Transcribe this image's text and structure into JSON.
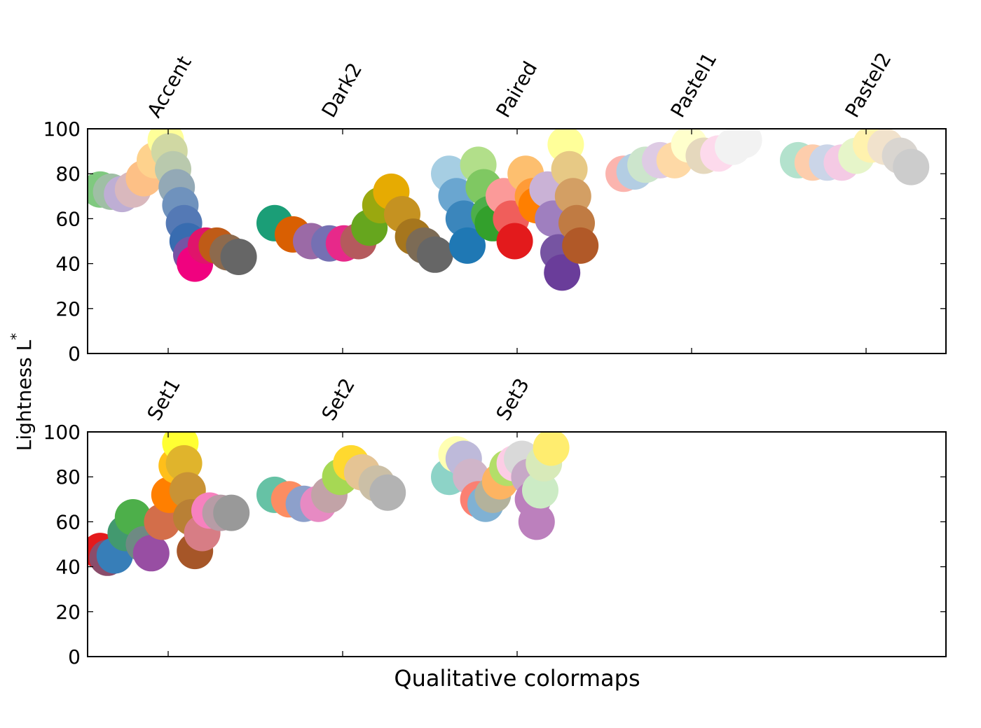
{
  "chart_data": {
    "type": "scatter",
    "ylabel": "Lightness L*",
    "ylabel_main": "Lightness L",
    "ylabel_sup": "*",
    "xlabel": "Qualitative colormaps",
    "ylim": [
      0,
      100
    ],
    "yticks": [
      "0",
      "20",
      "40",
      "60",
      "80",
      "100"
    ],
    "panels": [
      {
        "colormaps": [
          {
            "name": "Accent",
            "points": [
              [
                0.0,
                73,
                "#7fc97f"
              ],
              [
                0.06,
                72,
                "#9fbfa5"
              ],
              [
                0.12,
                71,
                "#beaed4"
              ],
              [
                0.18,
                73,
                "#d9b8bd"
              ],
              [
                0.24,
                78,
                "#fdc086"
              ],
              [
                0.3,
                86,
                "#fed28d"
              ],
              [
                0.36,
                95,
                "#ffff99"
              ],
              [
                0.38,
                90,
                "#d0d8a3"
              ],
              [
                0.4,
                82,
                "#b9c9ad"
              ],
              [
                0.42,
                74,
                "#93a9b6"
              ],
              [
                0.44,
                66,
                "#6f92bd"
              ],
              [
                0.46,
                58,
                "#5479b5"
              ],
              [
                0.48,
                50,
                "#386cb0"
              ],
              [
                0.5,
                44,
                "#7554a4"
              ],
              [
                0.52,
                40,
                "#f0027f"
              ],
              [
                0.58,
                48,
                "#e0146b"
              ],
              [
                0.64,
                48,
                "#bf5b17"
              ],
              [
                0.7,
                45,
                "#8d6a4d"
              ],
              [
                0.76,
                43,
                "#666666"
              ]
            ]
          },
          {
            "name": "Dark2",
            "points": [
              [
                0.0,
                58,
                "#1b9e77"
              ],
              [
                0.1,
                53,
                "#d95f02"
              ],
              [
                0.2,
                50,
                "#9b6aa6"
              ],
              [
                0.3,
                49,
                "#7570b3"
              ],
              [
                0.38,
                49,
                "#e7298a"
              ],
              [
                0.46,
                50,
                "#b55a5d"
              ],
              [
                0.52,
                56,
                "#66a61e"
              ],
              [
                0.58,
                66,
                "#9aa80f"
              ],
              [
                0.64,
                72,
                "#e6ab02"
              ],
              [
                0.7,
                62,
                "#c59221"
              ],
              [
                0.76,
                52,
                "#a6761d"
              ],
              [
                0.82,
                48,
                "#7c6b55"
              ],
              [
                0.88,
                44,
                "#666666"
              ]
            ]
          },
          {
            "name": "Paired",
            "points": [
              [
                0.0,
                80,
                "#a6cee3"
              ],
              [
                0.04,
                70,
                "#6aa6d0"
              ],
              [
                0.08,
                60,
                "#3b86bc"
              ],
              [
                0.1,
                48,
                "#1f78b4"
              ],
              [
                0.16,
                84,
                "#b2df8a"
              ],
              [
                0.19,
                74,
                "#7fc862"
              ],
              [
                0.22,
                62,
                "#4daf4a"
              ],
              [
                0.24,
                58,
                "#33a02c"
              ],
              [
                0.3,
                70,
                "#fb9a99"
              ],
              [
                0.34,
                60,
                "#f05e5b"
              ],
              [
                0.36,
                50,
                "#e31a1c"
              ],
              [
                0.42,
                80,
                "#fdbf6f"
              ],
              [
                0.46,
                70,
                "#ff9b37"
              ],
              [
                0.48,
                66,
                "#ff7f00"
              ],
              [
                0.54,
                73,
                "#cab2d6"
              ],
              [
                0.57,
                60,
                "#9f7fbf"
              ],
              [
                0.6,
                45,
                "#7654a2"
              ],
              [
                0.62,
                36,
                "#6a3d9a"
              ],
              [
                0.64,
                93,
                "#ffff99"
              ],
              [
                0.66,
                82,
                "#e7c985"
              ],
              [
                0.68,
                70,
                "#d39f64"
              ],
              [
                0.7,
                58,
                "#c07b43"
              ],
              [
                0.72,
                48,
                "#b15928"
              ]
            ]
          },
          {
            "name": "Pastel1",
            "points": [
              [
                0.0,
                80,
                "#fbb4ae"
              ],
              [
                0.06,
                81,
                "#b3cde3"
              ],
              [
                0.12,
                84,
                "#cce5cc"
              ],
              [
                0.2,
                86,
                "#decbe4"
              ],
              [
                0.28,
                86,
                "#fed9a6"
              ],
              [
                0.36,
                93,
                "#ffffcc"
              ],
              [
                0.44,
                88,
                "#e5d8bd"
              ],
              [
                0.52,
                89,
                "#fddaec"
              ],
              [
                0.6,
                92,
                "#f2f2f2"
              ],
              [
                0.66,
                95,
                "#f2f2f2"
              ]
            ]
          },
          {
            "name": "Pastel2",
            "points": [
              [
                0.0,
                86,
                "#b3e2cd"
              ],
              [
                0.08,
                85,
                "#fdcdac"
              ],
              [
                0.16,
                85,
                "#cbd5e8"
              ],
              [
                0.24,
                85,
                "#f4cae4"
              ],
              [
                0.32,
                88,
                "#e6f5c9"
              ],
              [
                0.4,
                93,
                "#fff2ae"
              ],
              [
                0.48,
                92,
                "#f1e2cc"
              ],
              [
                0.56,
                88,
                "#d9d5d0"
              ],
              [
                0.62,
                83,
                "#cccccc"
              ]
            ]
          }
        ]
      },
      {
        "colormaps": [
          {
            "name": "Set1",
            "points": [
              [
                0.0,
                47,
                "#e41a1c"
              ],
              [
                0.04,
                44,
                "#8a4c6b"
              ],
              [
                0.08,
                45,
                "#377eb8"
              ],
              [
                0.14,
                55,
                "#42996f"
              ],
              [
                0.18,
                62,
                "#4daf4a"
              ],
              [
                0.24,
                50,
                "#6e8a83"
              ],
              [
                0.28,
                46,
                "#984ea3"
              ],
              [
                0.34,
                60,
                "#d36e4a"
              ],
              [
                0.38,
                72,
                "#ff7f00"
              ],
              [
                0.42,
                85,
                "#ffbf1a"
              ],
              [
                0.44,
                95,
                "#ffff33"
              ],
              [
                0.46,
                86,
                "#e0b42c"
              ],
              [
                0.48,
                74,
                "#c99335"
              ],
              [
                0.5,
                62,
                "#b98035"
              ],
              [
                0.52,
                47,
                "#a65628"
              ],
              [
                0.56,
                55,
                "#d77d85"
              ],
              [
                0.6,
                65,
                "#f781bf"
              ],
              [
                0.66,
                64,
                "#b79ca6"
              ],
              [
                0.72,
                64,
                "#999999"
              ]
            ]
          },
          {
            "name": "Set2",
            "points": [
              [
                0.0,
                72,
                "#66c2a5"
              ],
              [
                0.08,
                70,
                "#fc8d62"
              ],
              [
                0.16,
                68,
                "#8da0cb"
              ],
              [
                0.24,
                68,
                "#e78ac3"
              ],
              [
                0.3,
                72,
                "#c2a3a7"
              ],
              [
                0.36,
                80,
                "#a6d854"
              ],
              [
                0.42,
                86,
                "#ffd92f"
              ],
              [
                0.48,
                82,
                "#e5c494"
              ],
              [
                0.56,
                77,
                "#cbbfa6"
              ],
              [
                0.62,
                73,
                "#b3b3b3"
              ]
            ]
          },
          {
            "name": "Set3",
            "points": [
              [
                0.0,
                80,
                "#8dd3c7"
              ],
              [
                0.04,
                90,
                "#ffffb3"
              ],
              [
                0.08,
                88,
                "#bebada"
              ],
              [
                0.12,
                80,
                "#d0b5c9"
              ],
              [
                0.16,
                70,
                "#fb8072"
              ],
              [
                0.2,
                68,
                "#80b1d3"
              ],
              [
                0.24,
                72,
                "#b3b29c"
              ],
              [
                0.28,
                78,
                "#fdb462"
              ],
              [
                0.32,
                84,
                "#b3de69"
              ],
              [
                0.36,
                86,
                "#fccde5"
              ],
              [
                0.4,
                88,
                "#d9d9d9"
              ],
              [
                0.44,
                80,
                "#c7a9c7"
              ],
              [
                0.46,
                70,
                "#bc80bd"
              ],
              [
                0.48,
                60,
                "#bc80bd"
              ],
              [
                0.5,
                74,
                "#ccebc5"
              ],
              [
                0.52,
                86,
                "#d8eab9"
              ],
              [
                0.56,
                93,
                "#ffed6f"
              ]
            ]
          }
        ]
      }
    ]
  }
}
